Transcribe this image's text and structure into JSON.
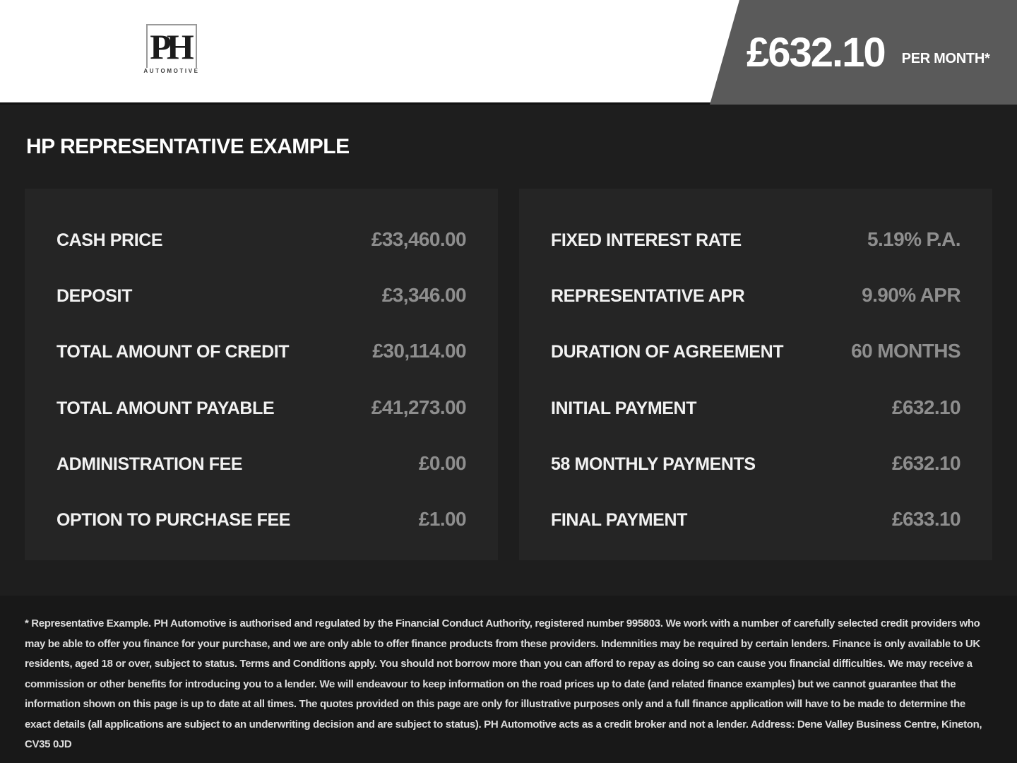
{
  "header": {
    "logo": {
      "initials": "PH",
      "subtext": "AUTOMOTIVE"
    },
    "price_banner": {
      "amount": "£632.10",
      "period": "PER MONTH*"
    }
  },
  "main": {
    "title": "HP REPRESENTATIVE EXAMPLE",
    "finance_example": {
      "left_panel": [
        {
          "label": "CASH PRICE",
          "value": "£33,460.00"
        },
        {
          "label": "DEPOSIT",
          "value": "£3,346.00"
        },
        {
          "label": "TOTAL AMOUNT OF CREDIT",
          "value": "£30,114.00"
        },
        {
          "label": "TOTAL AMOUNT PAYABLE",
          "value": "£41,273.00"
        },
        {
          "label": "ADMINISTRATION FEE",
          "value": "£0.00"
        },
        {
          "label": "OPTION TO PURCHASE FEE",
          "value": "£1.00"
        }
      ],
      "right_panel": [
        {
          "label": "FIXED INTEREST RATE",
          "value": "5.19% P.A."
        },
        {
          "label": "REPRESENTATIVE APR",
          "value": "9.90% APR"
        },
        {
          "label": "DURATION OF AGREEMENT",
          "value": "60 MONTHS"
        },
        {
          "label": "INITIAL PAYMENT",
          "value": "£632.10"
        },
        {
          "label": "58 MONTHLY PAYMENTS",
          "value": "£632.10"
        },
        {
          "label": "FINAL PAYMENT",
          "value": "£633.10"
        }
      ]
    }
  },
  "footer": {
    "disclaimer": "* Representative Example. PH Automotive is authorised and regulated by the Financial Conduct Authority, registered number 995803. We work with a number of carefully selected credit providers who may be able to offer you finance for your purchase, and we are only able to offer finance products from these providers. Indemnities may be required by certain lenders. Finance is only available to UK residents, aged 18 or over, subject to status. Terms and Conditions apply. You should not borrow more than you can afford to repay as doing so can cause you financial difficulties. We may receive a commission or other benefits for introducing you to a lender. We will endeavour to keep information on the road prices up to date (and related finance examples) but we cannot guarantee that the information shown on this page is up to date at all times. The quotes provided on this page are only for illustrative purposes only and a full finance application will have to be made to determine the exact details (all applications are subject to an underwriting decision and are subject to status). PH Automotive acts as a credit broker and not a lender. Address: Dene Valley Business Centre, Kineton, CV35 0JD"
  },
  "colors": {
    "header_bg": "#ffffff",
    "banner_bg": "#5a5a5a",
    "page_bg": "#1e1e1e",
    "panel_bg": "#252525",
    "footer_bg": "#181818",
    "label_text": "#f2f2f2",
    "value_text": "#8e8e8e",
    "disclaimer_text": "#dcdcdc"
  }
}
